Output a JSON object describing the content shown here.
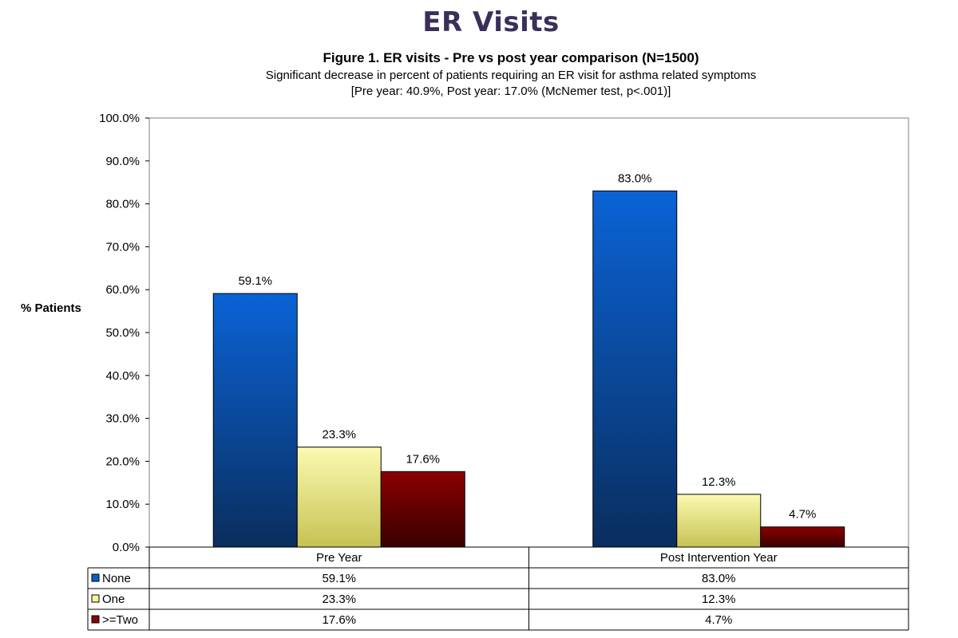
{
  "slide_title": "ER Visits",
  "chart_data": {
    "type": "bar",
    "title": "Figure 1. ER visits - Pre vs post year comparison (N=1500)",
    "subtitle": "Significant decrease in percent of patients requiring  an ER visit for asthma related symptoms",
    "subtitle2": "[Pre year:  40.9%, Post year: 17.0% (McNemer test, p<.001)]",
    "xlabel": "",
    "ylabel": "% Patients",
    "categories": [
      "Pre Year",
      "Post Intervention Year"
    ],
    "series": [
      {
        "name": "None",
        "values": [
          59.1,
          83.0
        ],
        "labels": [
          "59.1%",
          "83.0%"
        ],
        "color": "#0b5fcc"
      },
      {
        "name": "One",
        "values": [
          23.3,
          12.3
        ],
        "labels": [
          "23.3%",
          "12.3%"
        ],
        "color": "#f6f39a"
      },
      {
        "name": ">=Two",
        "values": [
          17.6,
          4.7
        ],
        "labels": [
          "17.6%",
          "4.7%"
        ],
        "color": "#8b0000"
      }
    ],
    "ylim": [
      0,
      100
    ],
    "yticks": [
      "0.0%",
      "10.0%",
      "20.0%",
      "30.0%",
      "40.0%",
      "50.0%",
      "60.0%",
      "70.0%",
      "80.0%",
      "90.0%",
      "100.0%"
    ],
    "grid": false,
    "legend": "data-table"
  }
}
